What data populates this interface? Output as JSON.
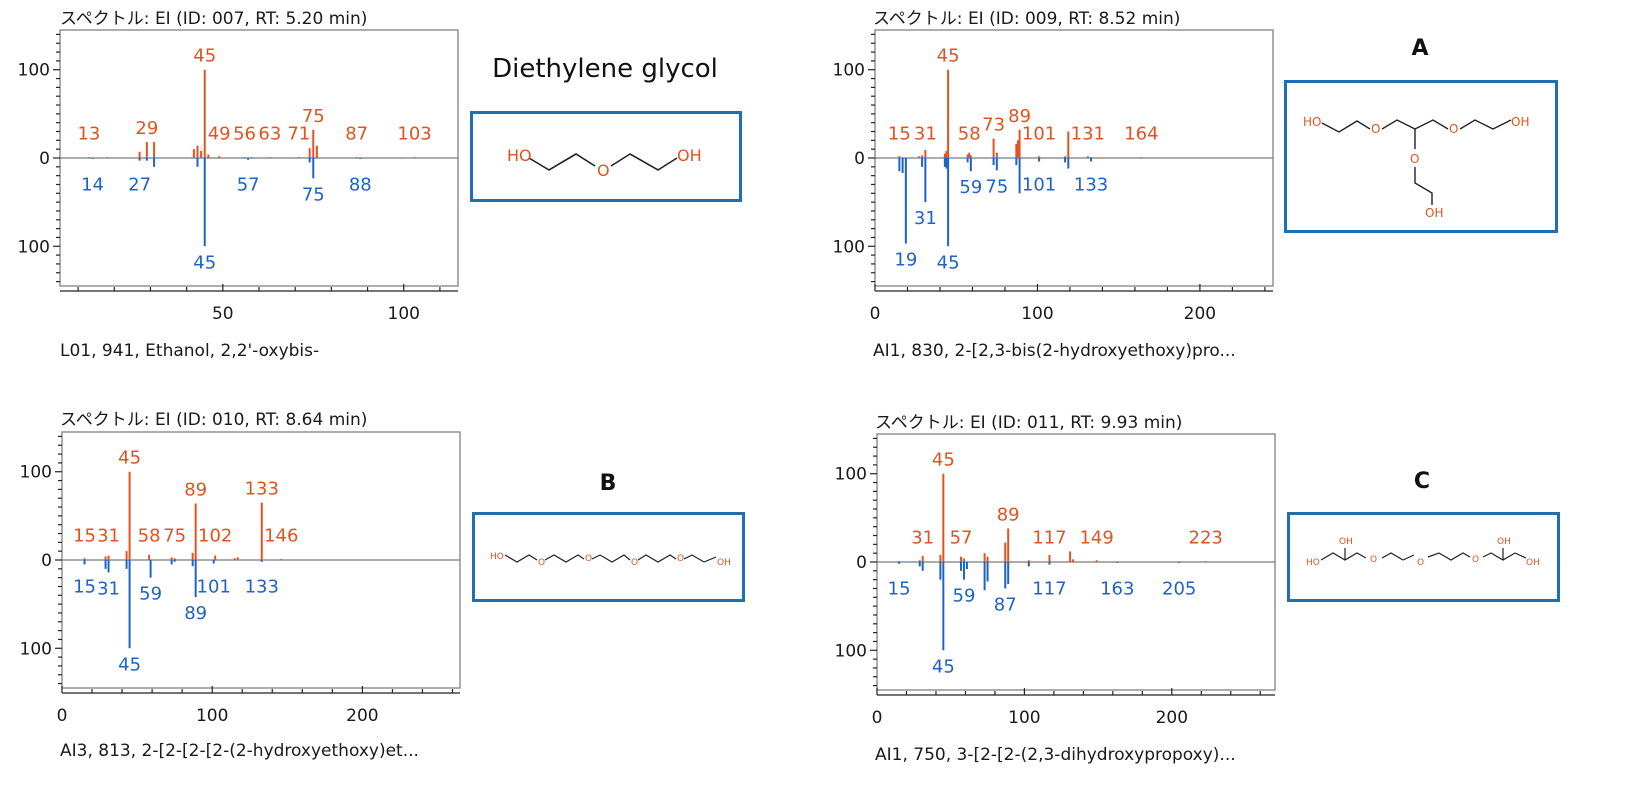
{
  "colors": {
    "library": "#e2531f",
    "measured": "#1f62c8",
    "baseline": "#7a7a7a",
    "box": "#1f6fb2"
  },
  "chart_data": [
    {
      "type": "bar",
      "title": "スペクトル: EI (ID: 007, RT: 5.20 min)",
      "caption": "L01, 941, Ethanol, 2,2'-oxybis-",
      "xlim": [
        5,
        115
      ],
      "xticks": [
        50,
        100
      ],
      "xminor": 10,
      "ylim": [
        -145,
        145
      ],
      "yticks": [
        100,
        0,
        100
      ],
      "ytick_values": [
        100,
        0,
        -100
      ],
      "series": [
        {
          "peaks": [
            [
              13,
              1
            ],
            [
              18,
              1
            ],
            [
              27,
              7
            ],
            [
              29,
              18
            ],
            [
              31,
              18
            ],
            [
              42,
              10
            ],
            [
              43,
              14
            ],
            [
              44,
              8
            ],
            [
              45,
              100
            ],
            [
              46,
              4
            ],
            [
              49,
              2
            ],
            [
              56,
              1
            ],
            [
              58,
              1
            ],
            [
              63,
              1
            ],
            [
              71,
              1
            ],
            [
              74,
              11
            ],
            [
              75,
              32
            ],
            [
              76,
              14
            ],
            [
              87,
              1
            ],
            [
              103,
              1
            ]
          ],
          "labels": [
            "13",
            "29",
            "45",
            "49",
            "56",
            "63",
            "71",
            "75",
            "87",
            "103"
          ]
        },
        {
          "peaks": [
            [
              14,
              1
            ],
            [
              27,
              3
            ],
            [
              29,
              3
            ],
            [
              31,
              10
            ],
            [
              43,
              10
            ],
            [
              45,
              100
            ],
            [
              57,
              2
            ],
            [
              74,
              5
            ],
            [
              75,
              23
            ],
            [
              88,
              1
            ]
          ],
          "labels": [
            "14",
            "27",
            "45",
            "57",
            "75",
            "88"
          ]
        }
      ]
    },
    {
      "type": "bar",
      "title": "スペクトル: EI (ID: 009, RT: 8.52 min)",
      "caption": "AI1, 830, 2-[2,3-bis(2-hydroxyethoxy)pro...",
      "xlim": [
        0,
        245
      ],
      "xticks": [
        0,
        100,
        200
      ],
      "xminor": 20,
      "ylim": [
        -145,
        145
      ],
      "yticks": [
        100,
        0,
        100
      ],
      "ytick_values": [
        100,
        0,
        -100
      ],
      "series": [
        {
          "peaks": [
            [
              15,
              2
            ],
            [
              27,
              2
            ],
            [
              29,
              3
            ],
            [
              31,
              9
            ],
            [
              43,
              5
            ],
            [
              44,
              8
            ],
            [
              45,
              100
            ],
            [
              57,
              4
            ],
            [
              58,
              6
            ],
            [
              59,
              3
            ],
            [
              73,
              22
            ],
            [
              75,
              6
            ],
            [
              87,
              16
            ],
            [
              88,
              20
            ],
            [
              89,
              32
            ],
            [
              101,
              2
            ],
            [
              117,
              2
            ],
            [
              119,
              30
            ],
            [
              131,
              2
            ],
            [
              133,
              1
            ],
            [
              164,
              1
            ]
          ],
          "labels": [
            "15",
            "31",
            "45",
            "58",
            "73",
            "89",
            "101",
            "131",
            "164"
          ]
        },
        {
          "peaks": [
            [
              15,
              15
            ],
            [
              17,
              17
            ],
            [
              19,
              97
            ],
            [
              29,
              10
            ],
            [
              31,
              50
            ],
            [
              43,
              10
            ],
            [
              44,
              12
            ],
            [
              45,
              100
            ],
            [
              57,
              5
            ],
            [
              59,
              15
            ],
            [
              73,
              8
            ],
            [
              75,
              14
            ],
            [
              87,
              8
            ],
            [
              89,
              40
            ],
            [
              101,
              4
            ],
            [
              117,
              5
            ],
            [
              119,
              12
            ],
            [
              133,
              4
            ]
          ],
          "labels": [
            "19",
            "31",
            "45",
            "59",
            "75",
            "101",
            "133"
          ]
        }
      ]
    },
    {
      "type": "bar",
      "title": "スペクトル: EI (ID: 010, RT: 8.64 min)",
      "caption": "AI3, 813, 2-[2-[2-[2-(2-hydroxyethoxy)et...",
      "xlim": [
        0,
        265
      ],
      "xticks": [
        0,
        100,
        200
      ],
      "xminor": 20,
      "ylim": [
        -145,
        145
      ],
      "yticks": [
        100,
        0,
        100
      ],
      "ytick_values": [
        100,
        0,
        -100
      ],
      "series": [
        {
          "peaks": [
            [
              15,
              2
            ],
            [
              29,
              4
            ],
            [
              31,
              5
            ],
            [
              43,
              10
            ],
            [
              45,
              100
            ],
            [
              58,
              6
            ],
            [
              73,
              3
            ],
            [
              75,
              2
            ],
            [
              87,
              8
            ],
            [
              89,
              64
            ],
            [
              102,
              5
            ],
            [
              115,
              2
            ],
            [
              117,
              3
            ],
            [
              133,
              65
            ],
            [
              146,
              1
            ]
          ],
          "labels": [
            "15",
            "31",
            "45",
            "58",
            "75",
            "89",
            "102",
            "133",
            "146"
          ]
        },
        {
          "peaks": [
            [
              15,
              5
            ],
            [
              29,
              10
            ],
            [
              31,
              14
            ],
            [
              43,
              10
            ],
            [
              45,
              100
            ],
            [
              59,
              20
            ],
            [
              73,
              5
            ],
            [
              75,
              2
            ],
            [
              87,
              7
            ],
            [
              89,
              42
            ],
            [
              101,
              4
            ],
            [
              133,
              2
            ]
          ],
          "labels": [
            "15",
            "31",
            "45",
            "59",
            "89",
            "101",
            "133"
          ]
        }
      ]
    },
    {
      "type": "bar",
      "title": "スペクトル: EI (ID: 011, RT: 9.93 min)",
      "caption": "AI1, 750, 3-[2-[2-(2,3-dihydroxypropoxy)...",
      "xlim": [
        0,
        270
      ],
      "xticks": [
        0,
        100,
        200
      ],
      "xminor": 20,
      "ylim": [
        -145,
        145
      ],
      "yticks": [
        100,
        0,
        100
      ],
      "ytick_values": [
        100,
        0,
        -100
      ],
      "series": [
        {
          "peaks": [
            [
              15,
              1
            ],
            [
              29,
              2
            ],
            [
              31,
              7
            ],
            [
              43,
              8
            ],
            [
              45,
              100
            ],
            [
              57,
              6
            ],
            [
              59,
              4
            ],
            [
              73,
              10
            ],
            [
              75,
              6
            ],
            [
              87,
              22
            ],
            [
              89,
              38
            ],
            [
              103,
              2
            ],
            [
              117,
              8
            ],
            [
              131,
              12
            ],
            [
              133,
              3
            ],
            [
              149,
              2
            ],
            [
              223,
              1
            ]
          ],
          "labels": [
            "31",
            "45",
            "57",
            "89",
            "117",
            "149",
            "223"
          ]
        },
        {
          "peaks": [
            [
              15,
              2
            ],
            [
              29,
              5
            ],
            [
              31,
              10
            ],
            [
              43,
              20
            ],
            [
              45,
              100
            ],
            [
              57,
              10
            ],
            [
              59,
              20
            ],
            [
              61,
              8
            ],
            [
              73,
              32
            ],
            [
              75,
              22
            ],
            [
              87,
              30
            ],
            [
              89,
              25
            ],
            [
              103,
              5
            ],
            [
              117,
              3
            ],
            [
              163,
              1
            ],
            [
              205,
              1
            ]
          ],
          "labels": [
            "15",
            "45",
            "59",
            "87",
            "117",
            "163",
            "205"
          ]
        }
      ]
    }
  ],
  "compounds": [
    {
      "name": "Diethylene glycol",
      "label": ""
    },
    {
      "name": "",
      "label": "A"
    },
    {
      "name": "",
      "label": "B"
    },
    {
      "name": "",
      "label": "C"
    }
  ],
  "structure_labels": {
    "oh_left": "HO",
    "oh_right": "OH",
    "oxygen": "O"
  }
}
